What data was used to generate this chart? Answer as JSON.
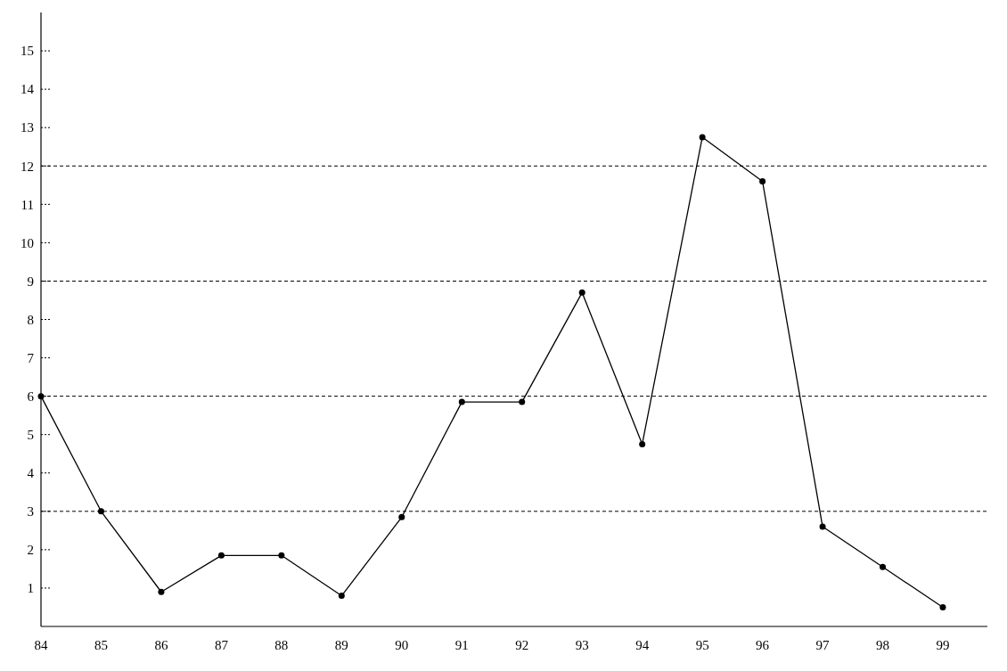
{
  "chart_data": {
    "type": "line",
    "categories": [
      "84",
      "85",
      "86",
      "87",
      "88",
      "89",
      "90",
      "91",
      "92",
      "93",
      "94",
      "95",
      "96",
      "97",
      "98",
      "99"
    ],
    "series": [
      {
        "color": "#000000",
        "values": [
          6,
          3,
          0.9,
          1.85,
          1.85,
          0.8,
          2.85,
          5.85,
          5.85,
          8.7,
          4.75,
          12.75,
          11.6,
          2.6,
          1.55,
          0.5
        ]
      }
    ],
    "ylim": [
      0,
      16
    ],
    "yticks": [
      1,
      2,
      3,
      4,
      5,
      6,
      7,
      8,
      9,
      10,
      11,
      12,
      13,
      14,
      15
    ],
    "marker": "circle",
    "line_style": "solid",
    "grid": false,
    "ref_lines": [
      {
        "axis": "y",
        "value": 3,
        "line_style": "dashed",
        "color": "#000000"
      },
      {
        "axis": "y",
        "value": 6,
        "line_style": "dashed",
        "color": "#000000"
      },
      {
        "axis": "y",
        "value": 9,
        "line_style": "dashed",
        "color": "#000000"
      },
      {
        "axis": "y",
        "value": 12,
        "line_style": "dashed",
        "color": "#000000"
      }
    ]
  }
}
